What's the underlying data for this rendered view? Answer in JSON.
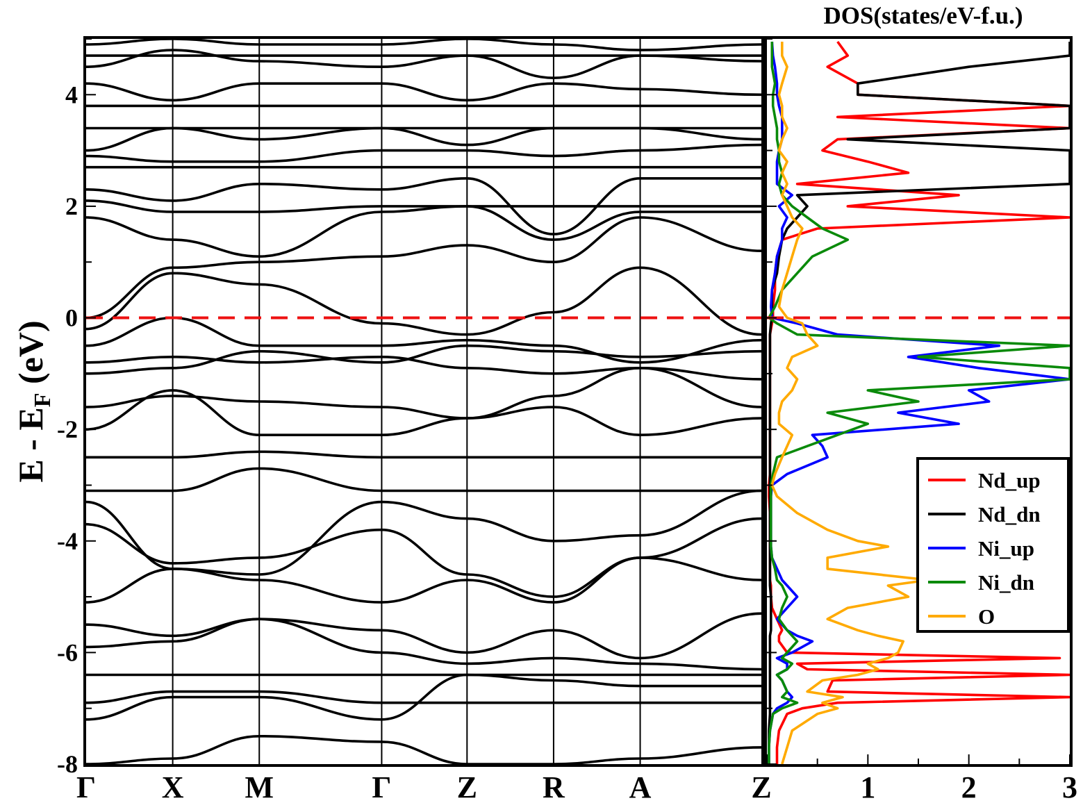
{
  "chart_data": [
    {
      "type": "line",
      "panel": "band-structure",
      "ylabel": "E - E",
      "ylabel_sub": "F",
      "ylabel_unit": "(eV)",
      "ylim": [
        -8,
        5
      ],
      "yticks": [
        4,
        2,
        0,
        -2,
        -4,
        -6,
        -8
      ],
      "kpath_labels": [
        "Γ",
        "X",
        "M",
        "Γ",
        "Z",
        "R",
        "A",
        "Z"
      ],
      "kpath_positions": [
        0.0,
        0.5,
        1.0,
        1.707,
        2.2,
        2.7,
        3.2,
        3.9
      ],
      "fermi_level": 0,
      "fermi_color": "#ee1111",
      "band_color": "#000000",
      "series": [
        {
          "values": [
            -8.0,
            -7.9,
            -7.5,
            -7.6,
            -8.0,
            -8.0,
            -7.9,
            -7.7
          ]
        },
        {
          "values": [
            -7.2,
            -6.8,
            -6.8,
            -7.2,
            -6.4,
            -6.5,
            -6.6,
            -6.6
          ]
        },
        {
          "values": [
            -6.9,
            -6.7,
            -6.7,
            -6.9,
            -6.9,
            -6.9,
            -6.9,
            -6.9
          ]
        },
        {
          "values": [
            -6.4,
            -6.4,
            -6.4,
            -6.4,
            -6.4,
            -6.4,
            -6.4,
            -6.4
          ]
        },
        {
          "values": [
            -5.9,
            -5.8,
            -5.4,
            -6.0,
            -6.2,
            -6.1,
            -6.2,
            -6.3
          ]
        },
        {
          "values": [
            -5.5,
            -5.7,
            -5.4,
            -5.6,
            -6.0,
            -5.6,
            -6.1,
            -5.3
          ]
        },
        {
          "values": [
            -5.1,
            -4.5,
            -4.7,
            -5.1,
            -4.7,
            -5.1,
            -4.3,
            -4.7
          ]
        },
        {
          "values": [
            -3.7,
            -4.4,
            -4.3,
            -3.8,
            -4.6,
            -5.0,
            -4.3,
            -3.6
          ]
        },
        {
          "values": [
            -3.3,
            -4.5,
            -4.6,
            -3.3,
            -3.6,
            -4.0,
            -3.9,
            -3.1
          ]
        },
        {
          "values": [
            -3.1,
            -3.1,
            -2.7,
            -3.1,
            -3.1,
            -3.1,
            -3.1,
            -3.1
          ]
        },
        {
          "values": [
            -2.5,
            -2.5,
            -2.4,
            -2.5,
            -2.5,
            -2.5,
            -2.5,
            -2.5
          ]
        },
        {
          "values": [
            -2.0,
            -1.3,
            -2.1,
            -2.1,
            -1.8,
            -1.6,
            -2.1,
            -1.8
          ]
        },
        {
          "values": [
            -1.6,
            -1.4,
            -1.5,
            -1.6,
            -1.8,
            -1.4,
            -0.9,
            -1.6
          ]
        },
        {
          "values": [
            -1.0,
            -0.9,
            -0.6,
            -0.8,
            -0.5,
            -0.6,
            -0.7,
            -0.6
          ]
        },
        {
          "values": [
            -0.8,
            -0.7,
            -0.8,
            -0.7,
            -0.9,
            -1.0,
            -0.9,
            -1.1
          ]
        },
        {
          "values": [
            -0.5,
            0.0,
            -0.5,
            -0.5,
            -0.4,
            -0.5,
            -0.8,
            -0.4
          ]
        },
        {
          "values": [
            -0.2,
            0.8,
            0.6,
            -0.1,
            -0.3,
            0.1,
            0.9,
            -0.3
          ]
        },
        {
          "values": [
            0.0,
            0.9,
            1.0,
            1.1,
            1.3,
            1.0,
            1.8,
            1.2
          ]
        },
        {
          "values": [
            1.8,
            1.4,
            1.1,
            1.9,
            2.0,
            1.4,
            1.9,
            1.9
          ]
        },
        {
          "values": [
            2.1,
            1.9,
            1.9,
            2.0,
            2.0,
            2.0,
            2.0,
            2.0
          ]
        },
        {
          "values": [
            2.3,
            2.1,
            2.4,
            2.3,
            2.5,
            1.5,
            2.5,
            2.5
          ]
        },
        {
          "values": [
            2.7,
            2.7,
            2.7,
            2.7,
            2.7,
            2.7,
            2.7,
            2.7
          ]
        },
        {
          "values": [
            2.9,
            2.8,
            2.8,
            3.0,
            3.0,
            2.9,
            3.0,
            3.1
          ]
        },
        {
          "values": [
            3.0,
            3.4,
            3.2,
            3.4,
            3.1,
            3.4,
            3.4,
            3.2
          ]
        },
        {
          "values": [
            3.4,
            3.4,
            3.4,
            3.4,
            3.4,
            3.4,
            3.4,
            3.4
          ]
        },
        {
          "values": [
            3.8,
            3.8,
            3.8,
            3.8,
            3.8,
            3.8,
            3.8,
            3.8
          ]
        },
        {
          "values": [
            4.2,
            3.9,
            4.2,
            4.2,
            3.9,
            4.2,
            4.1,
            4.0
          ]
        },
        {
          "values": [
            4.5,
            4.8,
            4.6,
            4.5,
            4.7,
            4.3,
            4.7,
            4.6
          ]
        },
        {
          "values": [
            4.7,
            4.7,
            4.7,
            4.7,
            4.7,
            4.7,
            4.7,
            4.7
          ]
        },
        {
          "values": [
            4.9,
            5.0,
            4.9,
            4.9,
            5.0,
            4.9,
            4.8,
            4.9
          ]
        }
      ]
    },
    {
      "type": "line",
      "panel": "dos",
      "title": "DOS(states/eV-f.u.)",
      "xlim": [
        0,
        3
      ],
      "xticks": [
        1,
        2,
        3
      ],
      "ylim": [
        -8,
        5
      ],
      "legend_position": "bottom-right",
      "energy": [
        -8.0,
        -7.7,
        -7.4,
        -7.1,
        -7.0,
        -6.9,
        -6.8,
        -6.7,
        -6.5,
        -6.4,
        -6.3,
        -6.2,
        -6.1,
        -6.0,
        -5.8,
        -5.7,
        -5.6,
        -5.4,
        -5.2,
        -5.0,
        -4.8,
        -4.7,
        -4.5,
        -4.3,
        -4.1,
        -4.0,
        -3.8,
        -3.5,
        -3.2,
        -3.0,
        -2.8,
        -2.5,
        -2.3,
        -2.1,
        -1.9,
        -1.7,
        -1.5,
        -1.3,
        -1.1,
        -0.9,
        -0.7,
        -0.5,
        -0.3,
        -0.1,
        0.0,
        0.2,
        0.5,
        0.8,
        1.1,
        1.4,
        1.6,
        1.8,
        2.0,
        2.2,
        2.4,
        2.6,
        2.8,
        3.0,
        3.2,
        3.4,
        3.6,
        3.8,
        4.0,
        4.2,
        4.5,
        4.7,
        4.95
      ],
      "series": [
        {
          "name": "Nd_up",
          "color": "#ff0000",
          "values": [
            0.1,
            0.1,
            0.12,
            0.2,
            0.35,
            0.7,
            3.0,
            0.6,
            0.65,
            3.0,
            0.4,
            0.3,
            2.9,
            0.2,
            0.12,
            0.12,
            0.15,
            0.1,
            0.05,
            0.04,
            0.04,
            0.03,
            0.03,
            0.03,
            0.03,
            0.03,
            0.03,
            0.03,
            0.02,
            0.02,
            0.03,
            0.03,
            0.03,
            0.03,
            0.03,
            0.03,
            0.03,
            0.03,
            0.03,
            0.03,
            0.03,
            0.03,
            0.03,
            0.05,
            0.06,
            0.06,
            0.08,
            0.08,
            0.1,
            0.15,
            0.5,
            3.0,
            0.8,
            1.9,
            0.3,
            1.4,
            1.0,
            0.55,
            0.7,
            3.0,
            0.7,
            3.0,
            0.9,
            0.9,
            0.6,
            0.8,
            0.7
          ]
        },
        {
          "name": "Nd_dn",
          "color": "#000000",
          "values": [
            0.02,
            0.02,
            0.02,
            0.03,
            0.03,
            0.03,
            0.03,
            0.03,
            0.03,
            0.03,
            0.03,
            0.03,
            0.03,
            0.03,
            0.03,
            0.03,
            0.04,
            0.04,
            0.04,
            0.04,
            0.03,
            0.03,
            0.03,
            0.03,
            0.03,
            0.03,
            0.03,
            0.03,
            0.03,
            0.03,
            0.03,
            0.03,
            0.03,
            0.03,
            0.03,
            0.03,
            0.03,
            0.03,
            0.03,
            0.03,
            0.03,
            0.03,
            0.03,
            0.04,
            0.05,
            0.05,
            0.05,
            0.1,
            0.12,
            0.15,
            0.2,
            0.3,
            0.4,
            0.3,
            3.0,
            3.0,
            3.0,
            3.0,
            0.8,
            3.0,
            3.0,
            3.0,
            0.9,
            0.9,
            2.0,
            3.0,
            3.0
          ]
        },
        {
          "name": "Ni_up",
          "color": "#0000ff",
          "values": [
            0.02,
            0.02,
            0.03,
            0.06,
            0.1,
            0.2,
            0.25,
            0.2,
            0.15,
            0.1,
            0.2,
            0.2,
            0.1,
            0.25,
            0.45,
            0.3,
            0.2,
            0.1,
            0.2,
            0.3,
            0.2,
            0.15,
            0.1,
            0.05,
            0.04,
            0.04,
            0.04,
            0.04,
            0.04,
            0.05,
            0.2,
            0.6,
            0.55,
            0.45,
            1.9,
            1.3,
            2.2,
            2.0,
            3.0,
            2.1,
            1.4,
            2.3,
            0.7,
            0.3,
            0.05,
            0.04,
            0.05,
            0.08,
            0.1,
            0.15,
            0.15,
            0.2,
            0.12,
            0.25,
            0.1,
            0.1,
            0.1,
            0.12,
            0.15,
            0.15,
            0.15,
            0.12,
            0.1,
            0.1,
            0.08,
            0.06,
            0.05
          ]
        },
        {
          "name": "Ni_dn",
          "color": "#0a8a0a",
          "values": [
            0.02,
            0.02,
            0.03,
            0.06,
            0.15,
            0.3,
            0.15,
            0.2,
            0.15,
            0.1,
            0.2,
            0.25,
            0.15,
            0.2,
            0.3,
            0.25,
            0.2,
            0.12,
            0.15,
            0.2,
            0.15,
            0.1,
            0.08,
            0.05,
            0.04,
            0.04,
            0.04,
            0.04,
            0.04,
            0.04,
            0.06,
            0.1,
            0.4,
            0.7,
            1.0,
            0.6,
            1.5,
            1.0,
            3.0,
            3.0,
            1.5,
            3.0,
            0.3,
            0.1,
            0.02,
            0.08,
            0.15,
            0.3,
            0.45,
            0.8,
            0.55,
            0.4,
            0.25,
            0.15,
            0.12,
            0.15,
            0.12,
            0.12,
            0.1,
            0.1,
            0.08,
            0.06,
            0.06,
            0.08,
            0.05,
            0.05,
            0.05
          ]
        },
        {
          "name": "O",
          "color": "#ffaa00",
          "values": [
            0.15,
            0.2,
            0.25,
            0.5,
            0.7,
            0.55,
            0.75,
            0.4,
            0.55,
            0.9,
            1.1,
            1.0,
            1.2,
            1.3,
            1.35,
            1.1,
            0.9,
            0.6,
            0.8,
            1.4,
            1.2,
            1.6,
            0.6,
            0.6,
            1.2,
            0.9,
            0.6,
            0.3,
            0.1,
            0.05,
            0.08,
            0.15,
            0.2,
            0.25,
            0.12,
            0.12,
            0.15,
            0.25,
            0.3,
            0.2,
            0.25,
            0.5,
            0.4,
            0.35,
            0.2,
            0.12,
            0.15,
            0.2,
            0.25,
            0.3,
            0.35,
            0.25,
            0.2,
            0.15,
            0.2,
            0.15,
            0.2,
            0.12,
            0.15,
            0.2,
            0.15,
            0.15,
            0.12,
            0.15,
            0.2,
            0.15,
            0.15
          ]
        }
      ]
    }
  ]
}
